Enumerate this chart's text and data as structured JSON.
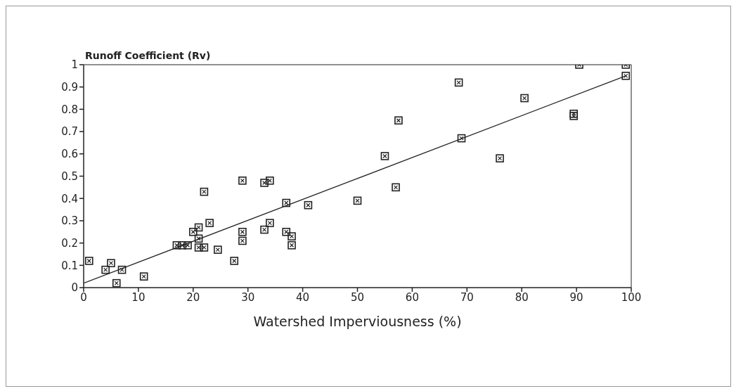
{
  "chart_data": {
    "type": "scatter",
    "ylabel": "Runoff Coefficient (Rv)",
    "xlabel": "Watershed Imperviousness (%)",
    "xlim": [
      0,
      100
    ],
    "xticks": [
      0,
      10,
      20,
      30,
      40,
      50,
      60,
      70,
      80,
      90,
      100
    ],
    "ylim": [
      0,
      1
    ],
    "yticks": [
      0,
      0.1,
      0.2,
      0.3,
      0.4,
      0.5,
      0.6,
      0.7,
      0.8,
      0.9,
      1
    ],
    "series": [
      {
        "marker": "square",
        "color": "#222222",
        "x": [
          1,
          4,
          5,
          6,
          7,
          11,
          17,
          18,
          19,
          20,
          21,
          21,
          21,
          22,
          22,
          23,
          24.5,
          27.5,
          29,
          29,
          29,
          33,
          34,
          33,
          34,
          37,
          37,
          38,
          38,
          41,
          50,
          55,
          57,
          57.5,
          68.5,
          69,
          76,
          80.5,
          89.5,
          89.5,
          90.5,
          99,
          99
        ],
        "values": [
          0.12,
          0.08,
          0.11,
          0.02,
          0.08,
          0.05,
          0.19,
          0.19,
          0.19,
          0.25,
          0.27,
          0.22,
          0.18,
          0.18,
          0.43,
          0.29,
          0.17,
          0.12,
          0.48,
          0.25,
          0.21,
          0.47,
          0.48,
          0.26,
          0.29,
          0.38,
          0.25,
          0.23,
          0.19,
          0.37,
          0.39,
          0.59,
          0.45,
          0.75,
          0.92,
          0.67,
          0.58,
          0.85,
          0.78,
          0.77,
          1,
          1,
          0.95
        ]
      },
      {
        "type": "line",
        "color": "#222222",
        "x": [
          0,
          99
        ],
        "values": [
          0.02,
          0.95
        ]
      }
    ]
  }
}
